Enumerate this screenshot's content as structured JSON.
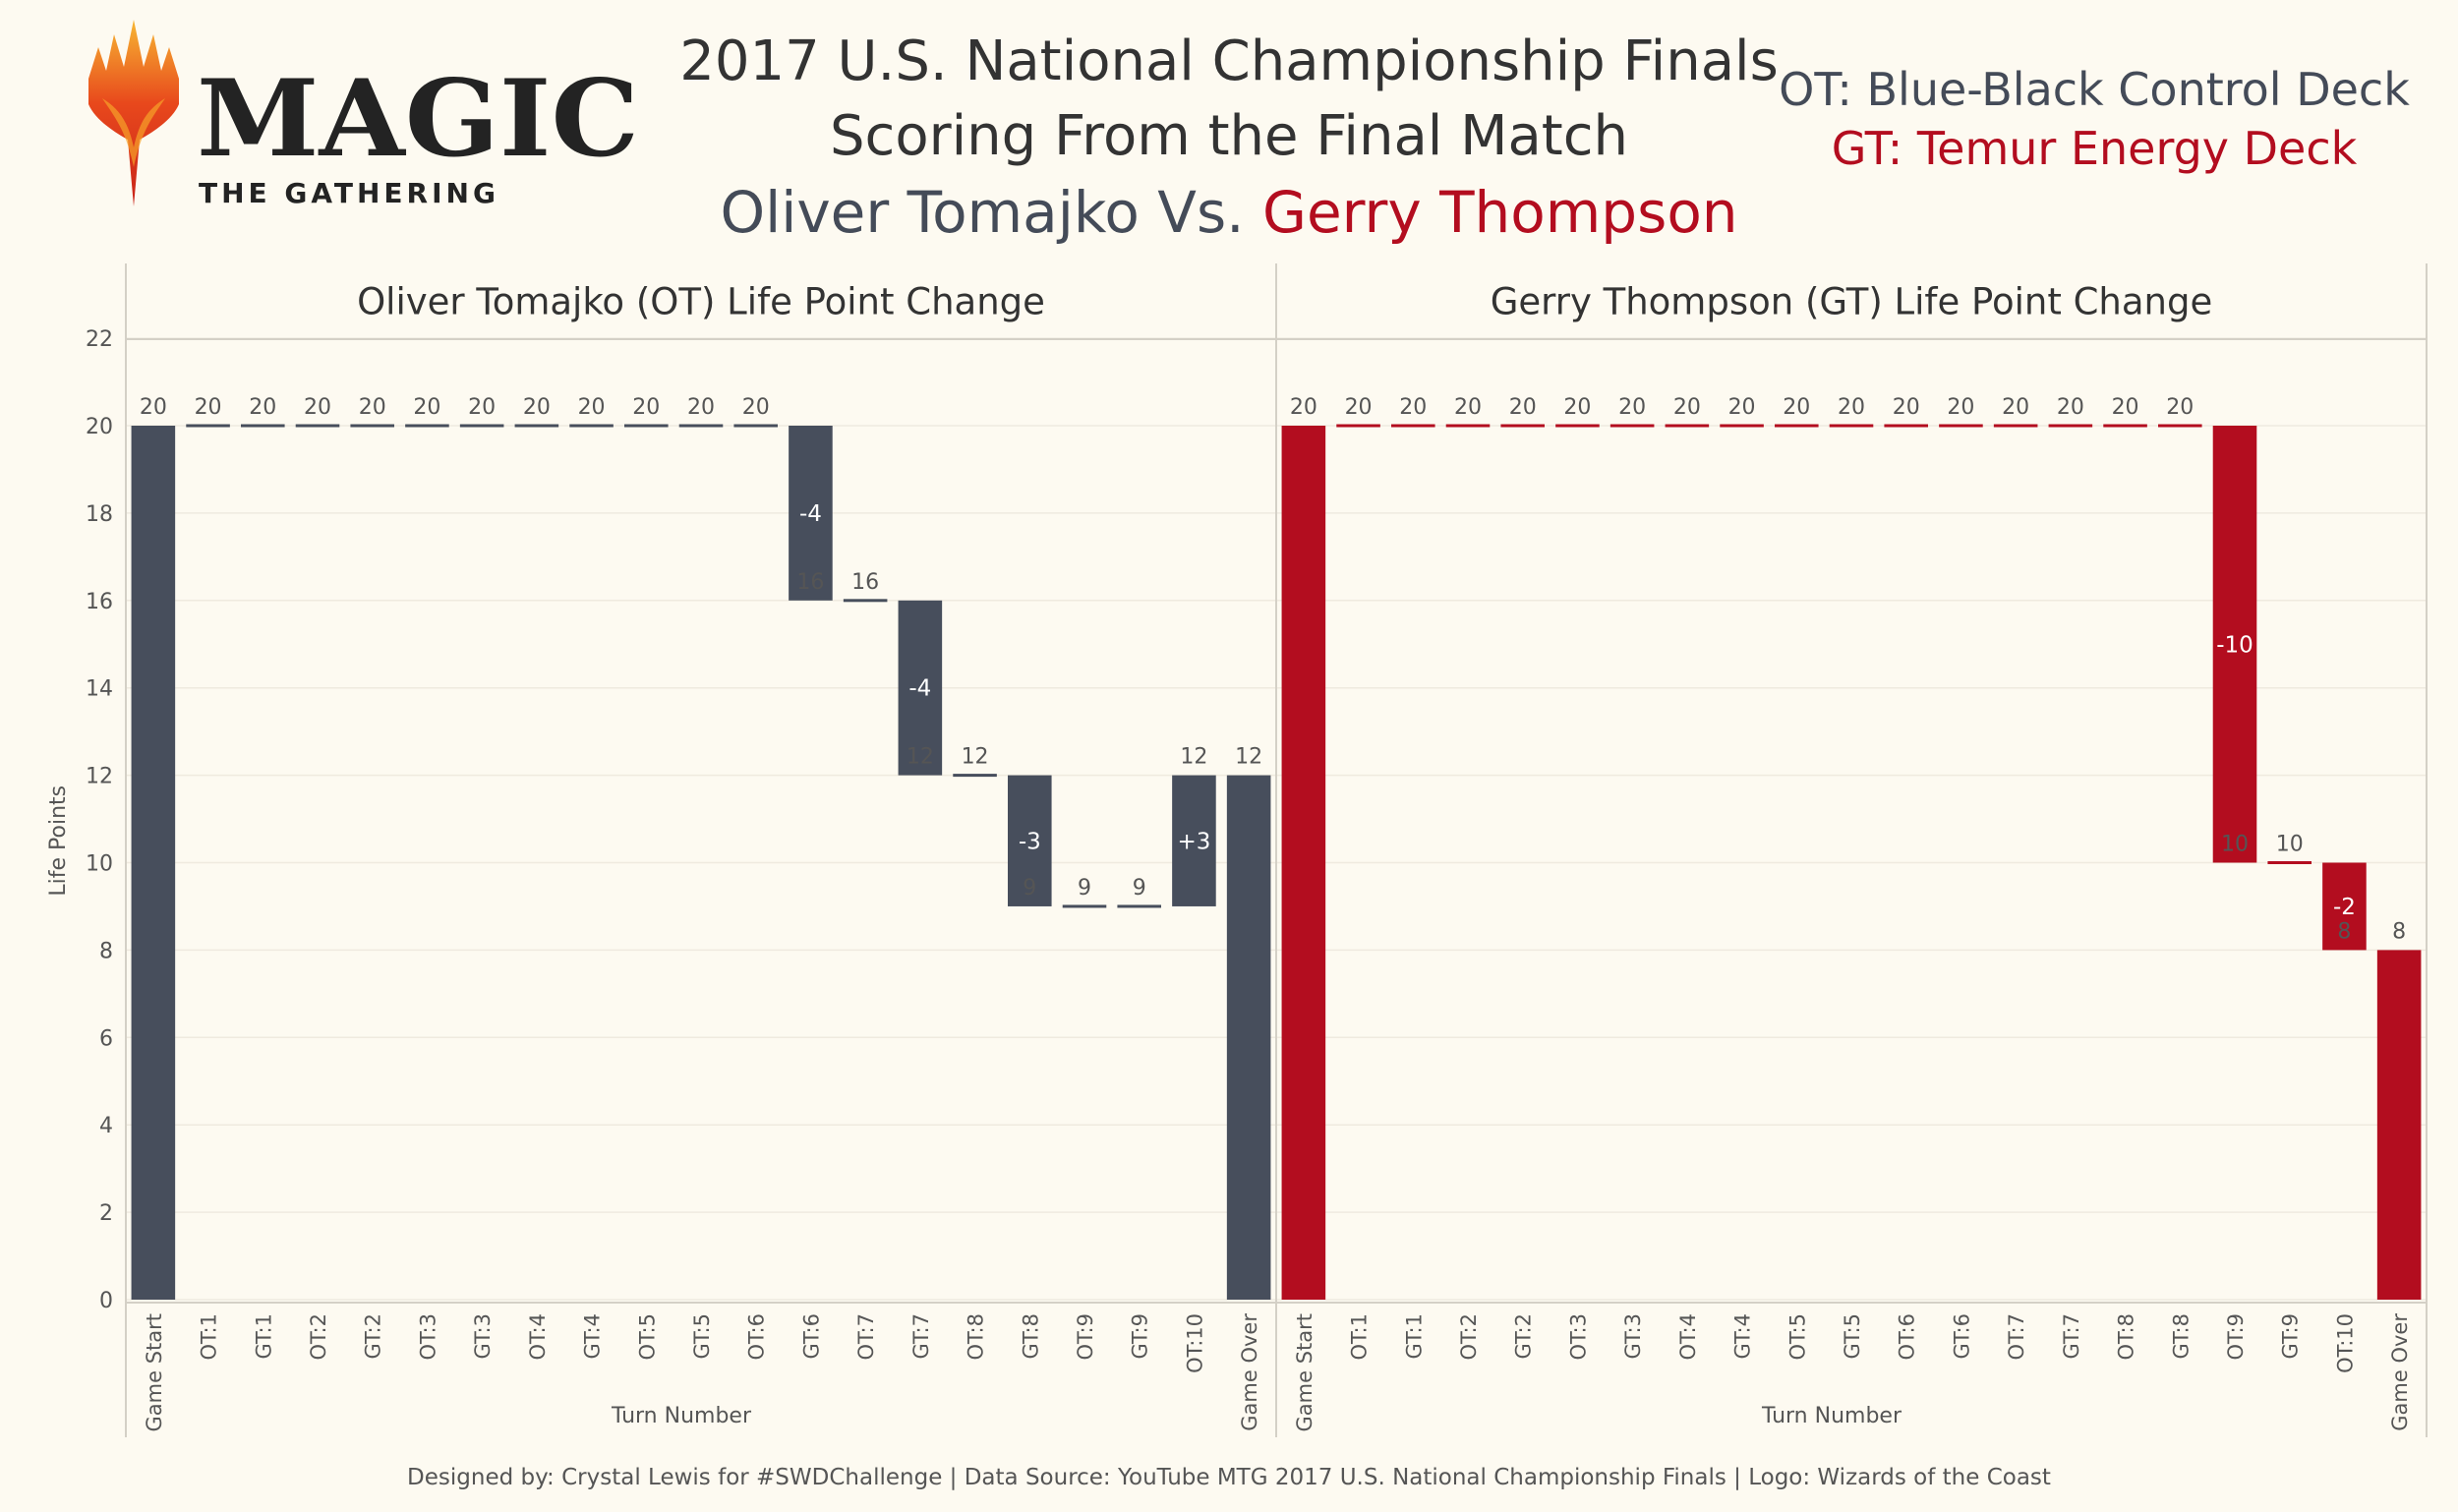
{
  "header": {
    "title_line1": "2017 U.S. National Championship Finals",
    "title_line2": "Scoring From the Final Match",
    "player_ot": "Oliver Tomajko",
    "vs": " Vs. ",
    "player_gt": "Gerry Thompson",
    "deck_ot": "OT: Blue-Black Control Deck",
    "deck_gt": "GT: Temur Energy Deck",
    "logo_word": "MAGIC",
    "logo_sub": "THE GATHERING"
  },
  "footer": {
    "credit": "Designed by: Crystal Lewis for #SWDChallenge  |  Data Source: YouTube MTG 2017 U.S. National Championship Finals  |  Logo: Wizards of the Coast"
  },
  "chart_data": {
    "type": "waterfall",
    "ylabel": "Life Points",
    "xlabel": "Turn Number",
    "ylim": [
      0,
      22
    ],
    "yticks": [
      0,
      2,
      4,
      6,
      8,
      10,
      12,
      14,
      16,
      18,
      20,
      22
    ],
    "grid": true,
    "colors": {
      "ot": "#474e5c",
      "gt": "#b30d1f"
    },
    "categories": [
      "Game Start",
      "OT:1",
      "GT:1",
      "OT:2",
      "GT:2",
      "OT:3",
      "GT:3",
      "OT:4",
      "GT:4",
      "OT:5",
      "GT:5",
      "OT:6",
      "GT:6",
      "OT:7",
      "GT:7",
      "OT:8",
      "GT:8",
      "OT:9",
      "GT:9",
      "OT:10",
      "Game Over"
    ],
    "panels": [
      {
        "title": "Oliver Tomajko (OT) Life Point Change",
        "color": "#474e5c",
        "categories": [
          "Game Start",
          "OT:1",
          "GT:1",
          "OT:2",
          "GT:2",
          "OT:3",
          "GT:3",
          "OT:4",
          "GT:4",
          "OT:5",
          "GT:5",
          "OT:6",
          "GT:6",
          "OT:7",
          "GT:7",
          "OT:8",
          "GT:8",
          "OT:9",
          "GT:9",
          "OT:10",
          "Game Over"
        ],
        "values": [
          20,
          20,
          20,
          20,
          20,
          20,
          20,
          20,
          20,
          20,
          20,
          20,
          16,
          16,
          12,
          12,
          9,
          9,
          9,
          12,
          12
        ],
        "changes": [
          "",
          "",
          "",
          "",
          "",
          "",
          "",
          "",
          "",
          "",
          "",
          "",
          "-4",
          "",
          "-4",
          "",
          "-3",
          "",
          "",
          "+3",
          ""
        ]
      },
      {
        "title": "Gerry Thompson (GT) Life Point Change",
        "color": "#b30d1f",
        "categories": [
          "Game Start",
          "OT:1",
          "GT:1",
          "OT:2",
          "GT:2",
          "OT:3",
          "GT:3",
          "OT:4",
          "GT:4",
          "OT:5",
          "GT:5",
          "OT:6",
          "GT:6",
          "OT:7",
          "GT:7",
          "OT:8",
          "GT:8",
          "OT:9",
          "GT:9",
          "OT:10",
          "Game Over"
        ],
        "values": [
          20,
          20,
          20,
          20,
          20,
          20,
          20,
          20,
          20,
          20,
          20,
          20,
          20,
          20,
          20,
          20,
          20,
          10,
          10,
          8,
          8
        ],
        "changes": [
          "",
          "",
          "",
          "",
          "",
          "",
          "",
          "",
          "",
          "",
          "",
          "",
          "",
          "",
          "",
          "",
          "",
          "-10",
          "",
          "-2",
          ""
        ]
      }
    ]
  }
}
